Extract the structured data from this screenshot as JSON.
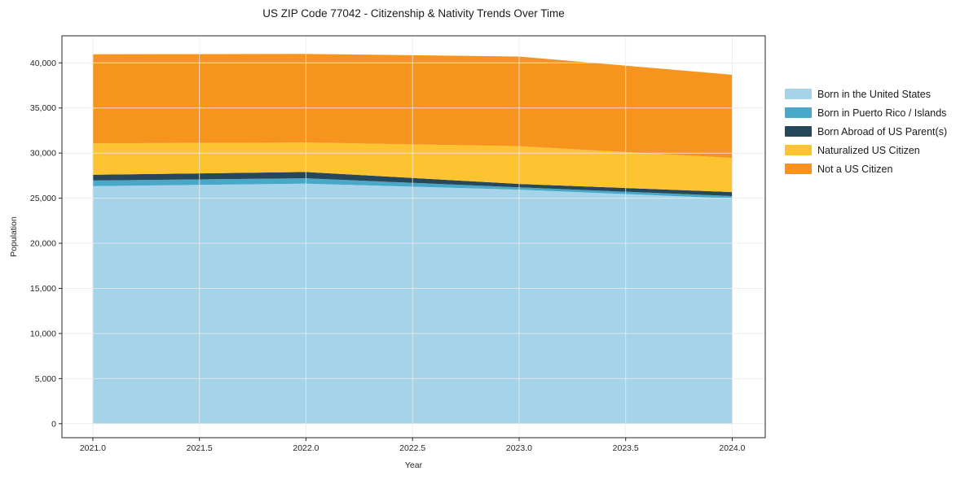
{
  "chart_data": {
    "type": "area",
    "stacked": true,
    "title": "US ZIP Code 77042 - Citizenship & Nativity Trends Over Time",
    "xlabel": "Year",
    "ylabel": "Population",
    "x": [
      2021,
      2022,
      2023,
      2024
    ],
    "series": [
      {
        "name": "Born in the United States",
        "color": "#a5d3e9",
        "values": [
          26330,
          26610,
          25950,
          24960
        ]
      },
      {
        "name": "Born in Puerto Rico / Islands",
        "color": "#49a8c8",
        "values": [
          630,
          600,
          250,
          270
        ]
      },
      {
        "name": "Born Abroad of US Parent(s)",
        "color": "#27485a",
        "values": [
          640,
          690,
          380,
          450
        ]
      },
      {
        "name": "Naturalized US Citizen",
        "color": "#fdc330",
        "values": [
          3480,
          3270,
          4180,
          3780
        ]
      },
      {
        "name": "Not a US Citizen",
        "color": "#f7941e",
        "values": [
          9870,
          9820,
          9940,
          9220
        ]
      }
    ],
    "totals": [
      40950,
      40990,
      40700,
      38680
    ],
    "xlim": [
      2020.855,
      2024.155
    ],
    "ylim": [
      -1550,
      43000
    ],
    "x_ticks": [
      {
        "v": 2021.0,
        "label": "2021.0"
      },
      {
        "v": 2021.5,
        "label": "2021.5"
      },
      {
        "v": 2022.0,
        "label": "2022.0"
      },
      {
        "v": 2022.5,
        "label": "2022.5"
      },
      {
        "v": 2023.0,
        "label": "2023.0"
      },
      {
        "v": 2023.5,
        "label": "2023.5"
      },
      {
        "v": 2024.0,
        "label": "2024.0"
      }
    ],
    "y_ticks": [
      {
        "v": 0,
        "label": "0"
      },
      {
        "v": 5000,
        "label": "5,000"
      },
      {
        "v": 10000,
        "label": "10,000"
      },
      {
        "v": 15000,
        "label": "15,000"
      },
      {
        "v": 20000,
        "label": "20,000"
      },
      {
        "v": 25000,
        "label": "25,000"
      },
      {
        "v": 30000,
        "label": "30,000"
      },
      {
        "v": 35000,
        "label": "35,000"
      },
      {
        "v": 40000,
        "label": "40,000"
      }
    ],
    "grid": true,
    "grid_color": "#ebebeb",
    "spine_color": "#262626",
    "legend_position": "right-outside",
    "background": "#ffffff"
  }
}
